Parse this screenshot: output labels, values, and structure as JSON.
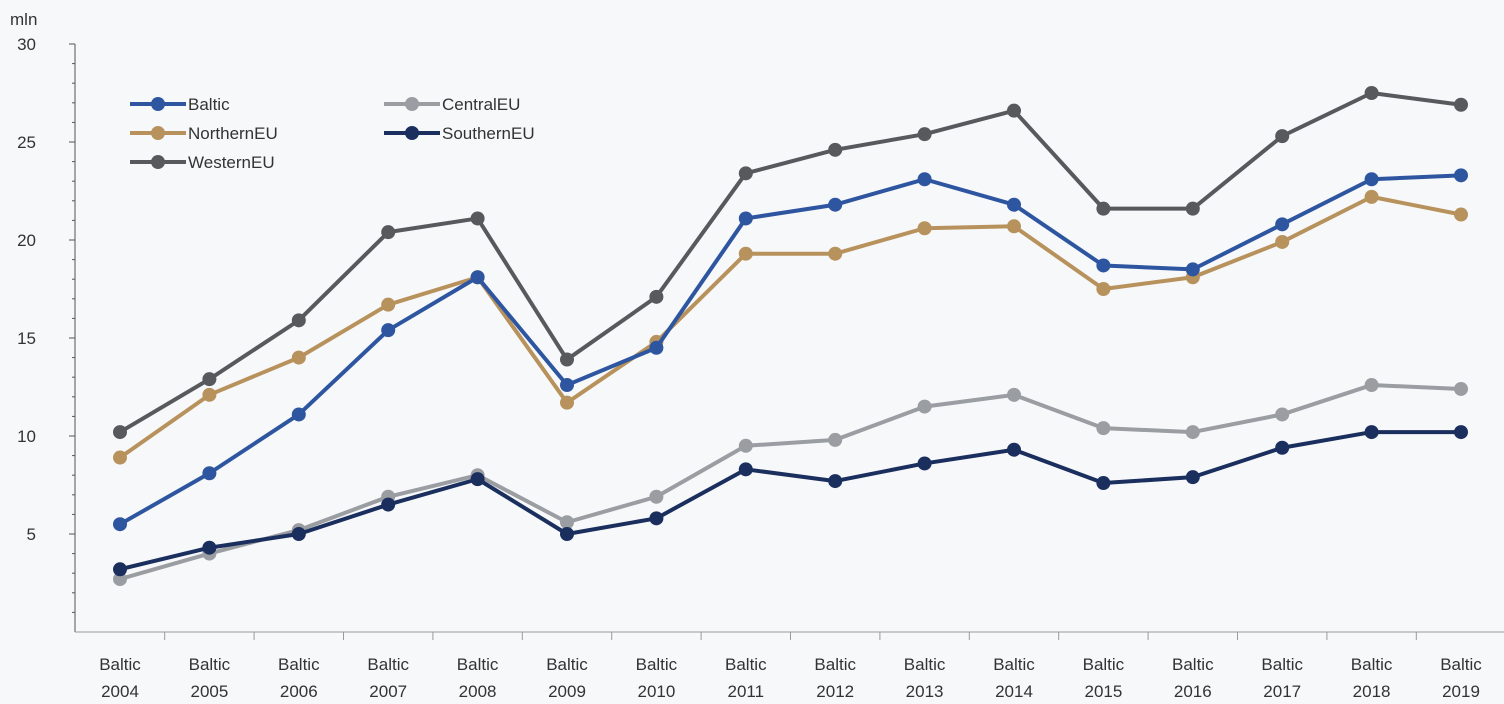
{
  "chart_data": {
    "type": "line",
    "ylabel": "mln",
    "ylim": [
      0,
      30
    ],
    "yticks": [
      "5",
      "10",
      "15",
      "20",
      "25",
      "30"
    ],
    "categories": [
      [
        "Baltic",
        "2004"
      ],
      [
        "Baltic",
        "2005"
      ],
      [
        "Baltic",
        "2006"
      ],
      [
        "Baltic",
        "2007"
      ],
      [
        "Baltic",
        "2008"
      ],
      [
        "Baltic",
        "2009"
      ],
      [
        "Baltic",
        "2010"
      ],
      [
        "Baltic",
        "2011"
      ],
      [
        "Baltic",
        "2012"
      ],
      [
        "Baltic",
        "2013"
      ],
      [
        "Baltic",
        "2014"
      ],
      [
        "Baltic",
        "2015"
      ],
      [
        "Baltic",
        "2016"
      ],
      [
        "Baltic",
        "2017"
      ],
      [
        "Baltic",
        "2018"
      ],
      [
        "Baltic",
        "2019"
      ]
    ],
    "legend_position": "top-left",
    "grid": false,
    "series": [
      {
        "name": "Baltic",
        "color": "#2e56a0",
        "values": [
          5.5,
          8.1,
          11.1,
          15.4,
          18.1,
          12.6,
          14.5,
          21.1,
          21.8,
          23.1,
          21.8,
          18.7,
          18.5,
          20.8,
          23.1,
          23.3
        ]
      },
      {
        "name": "CentralEU",
        "color": "#9a9da1",
        "values": [
          2.7,
          4.0,
          5.2,
          6.9,
          8.0,
          5.6,
          6.9,
          9.5,
          9.8,
          11.5,
          12.1,
          10.4,
          10.2,
          11.1,
          12.6,
          12.4
        ]
      },
      {
        "name": "NorthernEU",
        "color": "#b8925c",
        "values": [
          8.9,
          12.1,
          14.0,
          16.7,
          18.1,
          11.7,
          14.8,
          19.3,
          19.3,
          20.6,
          20.7,
          17.5,
          18.1,
          19.9,
          22.2,
          21.3
        ]
      },
      {
        "name": "SouthernEU",
        "color": "#1b2f5e",
        "values": [
          3.2,
          4.3,
          5.0,
          6.5,
          7.8,
          5.0,
          5.8,
          8.3,
          7.7,
          8.6,
          9.3,
          7.6,
          7.9,
          9.4,
          10.2,
          10.2
        ]
      },
      {
        "name": "WesternEU",
        "color": "#58595d",
        "values": [
          10.2,
          12.9,
          15.9,
          20.4,
          21.1,
          13.9,
          17.1,
          23.4,
          24.6,
          25.4,
          26.6,
          21.6,
          21.6,
          25.3,
          27.5,
          26.9
        ]
      }
    ]
  }
}
